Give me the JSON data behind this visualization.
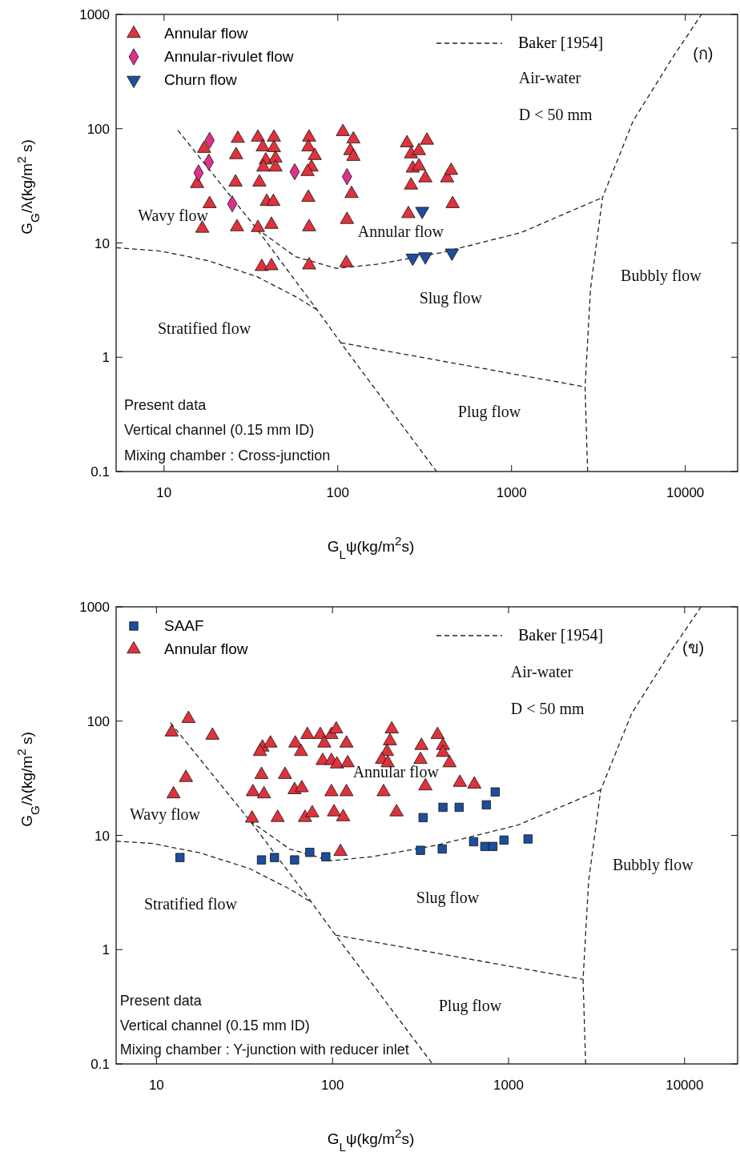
{
  "chart_data": [
    {
      "type": "scatter",
      "xlabel": "G$_{L}$ψ(kg/m$^{2}$s)",
      "ylabel": "G$_{G}$/λ(kg/m$^{2}$ s)",
      "log": "xy",
      "xlim": [
        5.3,
        20000
      ],
      "ylim": [
        0.1,
        1000
      ],
      "xticks": [
        10,
        100,
        1000,
        10000
      ],
      "yticks": [
        0.1,
        1,
        10,
        100,
        1000
      ],
      "grid": false,
      "legend": "top left",
      "series": [
        {
          "name": "Annular flow",
          "color": "#e0323c",
          "marker": "triangle",
          "x": [
            17.0,
            15.5,
            18.3,
            16.6,
            26.6,
            26.0,
            25.8,
            26.3,
            34.7,
            37.0,
            38.5,
            37.3,
            35.4,
            39.0,
            34.7,
            42.9,
            42.9,
            43.8,
            43.8,
            42.6,
            41.5,
            36.5,
            41.5,
            68.4,
            67.7,
            73.7,
            70.6,
            67.0,
            67.7,
            68.4,
            68.4,
            107,
            123,
            118,
            123,
            120,
            113,
            112,
            250,
            326,
            264,
            293,
            270,
            293,
            264,
            319,
            426,
            449,
            458,
            255
          ],
          "values": [
            67,
            33,
            22,
            13.4,
            82,
            59,
            34,
            13.8,
            84,
            69,
            53,
            46,
            34,
            23,
            13.6,
            84,
            68,
            55,
            46,
            23,
            14.5,
            6.2,
            6.3,
            84,
            69,
            58,
            46,
            42,
            25,
            13.8,
            6.4,
            94,
            81,
            64,
            57,
            27,
            16,
            6.7,
            75,
            79,
            60,
            64,
            45,
            47,
            32,
            37,
            37,
            43,
            22,
            18
          ]
        },
        {
          "name": "Annular-rivulet flow",
          "color": "#e0308a",
          "marker": "diamond",
          "x": [
            18.3,
            18.1,
            15.8,
            24.7,
            56.5,
            113
          ],
          "values": [
            79,
            51,
            41,
            22,
            42,
            38
          ]
        },
        {
          "name": "Churn flow",
          "color": "#1f4e9c",
          "marker": "triangle-down",
          "x": [
            306,
            270,
            319,
            454
          ],
          "values": [
            19,
            7.4,
            7.6,
            8.2
          ]
        },
        {
          "name": "Baker [1954]",
          "type": "line",
          "color": "#222222",
          "line_style": "dashed",
          "marker": "none",
          "x": [
            5.3,
            9.5,
            17.9,
            34,
            57,
            76,
            null,
            12,
            34,
            76,
            104,
            370,
            null,
            34,
            57,
            98,
            167,
            390,
            1130,
            3340,
            null,
            104,
            2650,
            null,
            2740,
            2650,
            2850,
            3340,
            5010,
            8510,
            12400
          ],
          "values": [
            9.1,
            8.5,
            7.0,
            5.1,
            3.4,
            2.6,
            null,
            97,
            13.4,
            2.6,
            1.34,
            0.1,
            null,
            13.4,
            7.6,
            6.0,
            6.5,
            8.2,
            12.3,
            25,
            null,
            1.34,
            0.55,
            null,
            0.1,
            0.55,
            4.0,
            25,
            117,
            426,
            1000
          ]
        }
      ],
      "annotations": [
        "Wavy flow",
        "Annular flow",
        "Slug flow",
        "Stratified  flow",
        "Plug flow",
        "Bubbly flow",
        "Air-water",
        "D < 50 mm",
        "(ก)",
        "Present data",
        "Vertical channel (0.15 mm ID)",
        "Mixing chamber : Cross-junction"
      ]
    },
    {
      "type": "scatter",
      "xlabel": "G$_{L}$ψ(kg/m$^{2}$s)",
      "ylabel": "G$_{G}$/λ(kg/m$^{2}$ s)",
      "log": "xy",
      "xlim": [
        5.9,
        20000
      ],
      "ylim": [
        0.1,
        1000
      ],
      "xticks": [
        10,
        100,
        1000,
        10000
      ],
      "yticks": [
        0.1,
        1,
        10,
        100,
        1000
      ],
      "grid": false,
      "legend": "top left",
      "series": [
        {
          "name": "SAAF",
          "color": "#1a4f9c",
          "marker": "square",
          "x": [
            13.6,
            39.5,
            46.8,
            60.9,
            74.3,
            91.6,
            327,
            424,
            524,
            748,
            840,
            316,
            420,
            633,
            733,
            814,
            942,
            1290
          ],
          "values": [
            6.4,
            6.1,
            6.4,
            6.1,
            7.1,
            6.5,
            14.3,
            17.6,
            17.6,
            18.5,
            24,
            7.4,
            7.6,
            8.8,
            8.0,
            8.0,
            9.1,
            9.3
          ]
        },
        {
          "name": "Annular flow",
          "color": "#e0323c",
          "marker": "triangle",
          "x": [
            15.2,
            12.2,
            20.8,
            14.7,
            12.5,
            40.0,
            44.4,
            38.7,
            61.5,
            72.0,
            85.2,
            98.6,
            105,
            89.8,
            120,
            66.2,
            87.9,
            98.6,
            106,
            122,
            39.5,
            53.7,
            35.3,
            40.8,
            60.9,
            66.9,
            98.6,
            120,
            34.9,
            48.8,
            69.8,
            76.7,
            102,
            115,
            111,
            217,
            212,
            204,
            191,
            206,
            195,
            231,
            320,
            316,
            337,
            395,
            424,
            424,
            462,
            529,
            639
          ],
          "values": [
            105,
            80,
            75,
            32,
            23,
            59,
            64,
            54,
            64,
            76,
            76,
            76,
            85,
            64,
            64,
            54,
            45,
            45,
            42,
            43,
            34,
            34,
            24,
            23,
            25,
            26,
            24,
            24,
            14.1,
            14.3,
            14.3,
            15.7,
            16.0,
            14.5,
            7.2,
            85,
            67,
            54,
            46,
            43,
            24,
            16.0,
            61,
            46,
            27,
            76,
            61,
            53,
            43,
            29,
            28
          ]
        },
        {
          "name": "Baker [1954]",
          "type": "line",
          "color": "#222222",
          "line_style": "dashed",
          "marker": "none",
          "x": [
            5.9,
            9.5,
            17.9,
            34,
            57,
            76,
            null,
            12,
            34,
            76,
            104,
            370,
            null,
            34,
            57,
            98,
            167,
            390,
            1130,
            3340,
            null,
            104,
            2650,
            null,
            2740,
            2650,
            2850,
            3340,
            5010,
            8510,
            12400
          ],
          "values": [
            8.9,
            8.5,
            7.0,
            5.1,
            3.4,
            2.6,
            null,
            97,
            13.4,
            2.6,
            1.34,
            0.1,
            null,
            13.4,
            7.6,
            6.0,
            6.5,
            8.2,
            12.3,
            25,
            null,
            1.34,
            0.55,
            null,
            0.1,
            0.55,
            4.0,
            25,
            117,
            426,
            1000
          ]
        }
      ],
      "annotations": [
        "Wavy flow",
        "Annular flow",
        "Slug flow",
        "Stratified  flow",
        "Plug flow",
        "Bubbly flow",
        "Air-water",
        "D < 50 mm",
        "(ข)",
        "Present data",
        "Vertical channel (0.15 mm ID)",
        "Mixing chamber : Y-junction with reducer inlet"
      ]
    }
  ]
}
